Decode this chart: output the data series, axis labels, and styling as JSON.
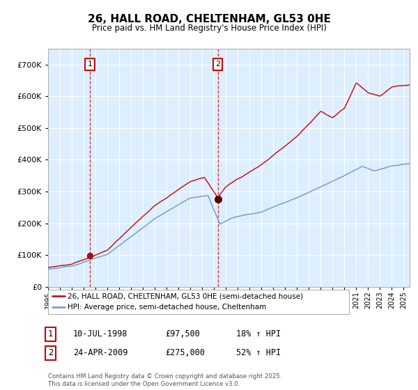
{
  "title": "26, HALL ROAD, CHELTENHAM, GL53 0HE",
  "subtitle": "Price paid vs. HM Land Registry's House Price Index (HPI)",
  "legend_line1": "26, HALL ROAD, CHELTENHAM, GL53 0HE (semi-detached house)",
  "legend_line2": "HPI: Average price, semi-detached house, Cheltenham",
  "annotation1_label": "1",
  "annotation1_date": "10-JUL-1998",
  "annotation1_price": "£97,500",
  "annotation1_hpi": "18% ↑ HPI",
  "annotation2_label": "2",
  "annotation2_date": "24-APR-2009",
  "annotation2_price": "£275,000",
  "annotation2_hpi": "52% ↑ HPI",
  "footnote": "Contains HM Land Registry data © Crown copyright and database right 2025.\nThis data is licensed under the Open Government Licence v3.0.",
  "property_color": "#cc0000",
  "hpi_color": "#6699cc",
  "vline_color": "#cc0000",
  "background_color": "#ffffff",
  "plot_bg_color": "#ddeeff",
  "grid_color": "#ffffff",
  "sale1_x": 1998.53,
  "sale1_y": 97500,
  "sale2_x": 2009.31,
  "sale2_y": 275000,
  "xmin": 1995,
  "xmax": 2025.5,
  "ylim": [
    0,
    750000
  ],
  "yticks": [
    0,
    100000,
    200000,
    300000,
    400000,
    500000,
    600000,
    700000
  ]
}
